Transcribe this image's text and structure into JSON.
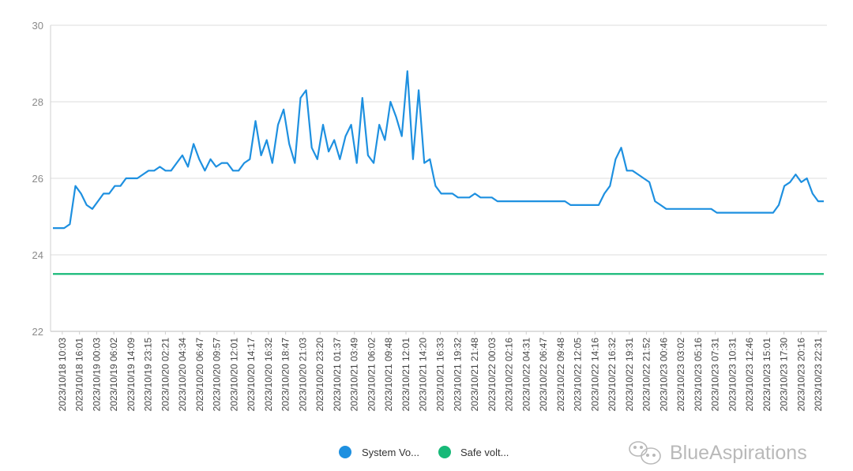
{
  "chart_data": {
    "type": "line",
    "title": "",
    "xlabel": "",
    "ylabel": "",
    "ylim": [
      22,
      30
    ],
    "yticks": [
      22,
      24,
      26,
      28,
      30
    ],
    "grid": true,
    "legend_position": "bottom-center",
    "x_tick_labels": [
      "2023/10/18 10:03",
      "2023/10/18 16:01",
      "2023/10/19 00:03",
      "2023/10/19 06:02",
      "2023/10/19 14:09",
      "2023/10/19 23:15",
      "2023/10/20 02:21",
      "2023/10/20 04:34",
      "2023/10/20 06:47",
      "2023/10/20 09:57",
      "2023/10/20 12:01",
      "2023/10/20 14:17",
      "2023/10/20 16:32",
      "2023/10/20 18:47",
      "2023/10/20 21:03",
      "2023/10/20 23:20",
      "2023/10/21 01:37",
      "2023/10/21 03:49",
      "2023/10/21 06:02",
      "2023/10/21 09:48",
      "2023/10/21 12:01",
      "2023/10/21 14:20",
      "2023/10/21 16:33",
      "2023/10/21 19:32",
      "2023/10/21 21:48",
      "2023/10/22 00:03",
      "2023/10/22 02:16",
      "2023/10/22 04:31",
      "2023/10/22 06:47",
      "2023/10/22 09:48",
      "2023/10/22 12:05",
      "2023/10/22 14:16",
      "2023/10/22 16:32",
      "2023/10/22 19:31",
      "2023/10/22 21:52",
      "2023/10/23 00:46",
      "2023/10/23 03:02",
      "2023/10/23 05:16",
      "2023/10/23 07:31",
      "2023/10/23 10:31",
      "2023/10/23 12:46",
      "2023/10/23 15:01",
      "2023/10/23 17:30",
      "2023/10/23 20:16",
      "2023/10/23 22:31"
    ],
    "series": [
      {
        "name": "System Vo...",
        "color": "#1e90e0",
        "values": [
          24.7,
          24.7,
          24.7,
          24.8,
          25.8,
          25.6,
          25.3,
          25.2,
          25.4,
          25.6,
          25.6,
          25.8,
          25.8,
          26.0,
          26.0,
          26.0,
          26.1,
          26.2,
          26.2,
          26.3,
          26.2,
          26.2,
          26.4,
          26.6,
          26.3,
          26.9,
          26.5,
          26.2,
          26.5,
          26.3,
          26.4,
          26.4,
          26.2,
          26.2,
          26.4,
          26.5,
          27.5,
          26.6,
          27.0,
          26.4,
          27.4,
          27.8,
          26.9,
          26.4,
          28.1,
          28.3,
          26.8,
          26.5,
          27.4,
          26.7,
          27.0,
          26.5,
          27.1,
          27.4,
          26.4,
          28.1,
          26.6,
          26.4,
          27.4,
          27.0,
          28.0,
          27.6,
          27.1,
          28.8,
          26.5,
          28.3,
          26.4,
          26.5,
          25.8,
          25.6,
          25.6,
          25.6,
          25.5,
          25.5,
          25.5,
          25.6,
          25.5,
          25.5,
          25.5,
          25.4,
          25.4,
          25.4,
          25.4,
          25.4,
          25.4,
          25.4,
          25.4,
          25.4,
          25.4,
          25.4,
          25.4,
          25.4,
          25.3,
          25.3,
          25.3,
          25.3,
          25.3,
          25.3,
          25.6,
          25.8,
          26.5,
          26.8,
          26.2,
          26.2,
          26.1,
          26.0,
          25.9,
          25.4,
          25.3,
          25.2,
          25.2,
          25.2,
          25.2,
          25.2,
          25.2,
          25.2,
          25.2,
          25.2,
          25.1,
          25.1,
          25.1,
          25.1,
          25.1,
          25.1,
          25.1,
          25.1,
          25.1,
          25.1,
          25.1,
          25.3,
          25.8,
          25.9,
          26.1,
          25.9,
          26.0,
          25.6,
          25.4,
          25.4
        ]
      },
      {
        "name": "Safe volt...",
        "color": "#17b978",
        "constant": 23.5
      }
    ]
  },
  "legend": {
    "items": [
      {
        "label": "System Vo...",
        "color": "#1e90e0"
      },
      {
        "label": "Safe volt...",
        "color": "#17b978"
      }
    ]
  },
  "watermark": {
    "text": "BlueAspirations",
    "icon": "wechat-icon"
  }
}
